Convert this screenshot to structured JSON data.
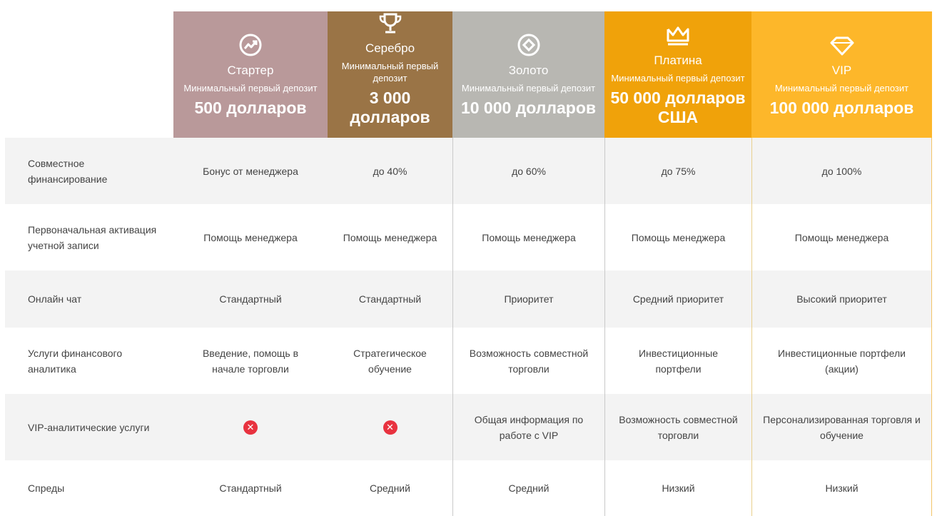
{
  "header": {
    "tiers": [
      {
        "name": "Стартер",
        "sub": "Минимальный первый депозит",
        "amount": "500 долларов",
        "icon": "chart-growth-icon",
        "color": "#b9999a"
      },
      {
        "name": "Серебро",
        "sub": "Минимальный первый депозит",
        "amount": "3 000 долларов",
        "icon": "trophy-icon",
        "color": "#9a7446"
      },
      {
        "name": "Золото",
        "sub": "Минимальный первый депозит",
        "amount": "10 000 долларов",
        "icon": "diamond-circle-icon",
        "color": "#b8b7b2"
      },
      {
        "name": "Платина",
        "sub": "Минимальный первый депозит",
        "amount": "50 000 долларов США",
        "icon": "crown-icon",
        "color": "#f0a20a"
      },
      {
        "name": "VIP",
        "sub": "Минимальный первый депозит",
        "amount": "100 000 долларов",
        "icon": "gem-icon",
        "color": "#fdb72a"
      }
    ]
  },
  "rows": [
    {
      "label": "Совместное финансирование",
      "values": [
        "Бонус от менеджера",
        "до 40%",
        "до 60%",
        "до 75%",
        "до 100%"
      ]
    },
    {
      "label": "Первоначальная активация учетной записи",
      "values": [
        "Помощь менеджера",
        "Помощь менеджера",
        "Помощь менеджера",
        "Помощь менеджера",
        "Помощь менеджера"
      ]
    },
    {
      "label": "Онлайн чат",
      "values": [
        "Стандартный",
        "Стандартный",
        "Приоритет",
        "Средний приоритет",
        "Высокий приоритет"
      ]
    },
    {
      "label": "Услуги финансового аналитика",
      "values": [
        "Введение, помощь в начале торговли",
        "Стратегическое обучение",
        "Возможность совместной торговли",
        "Инвестиционные портфели",
        "Инвестиционные портфели (акции)"
      ]
    },
    {
      "label": "VIP-аналитические услуги",
      "values": [
        "",
        "",
        "Общая информация по работе с VIP",
        "Возможность совместной торговли",
        "Персонализированная торговля и обучение"
      ]
    },
    {
      "label": "Спреды",
      "values": [
        "Стандартный",
        "Средний",
        "Средний",
        "Низкий",
        "Низкий"
      ]
    }
  ],
  "status_icons": {
    "not_available": "x-circle-icon",
    "color": "#e8323f"
  }
}
